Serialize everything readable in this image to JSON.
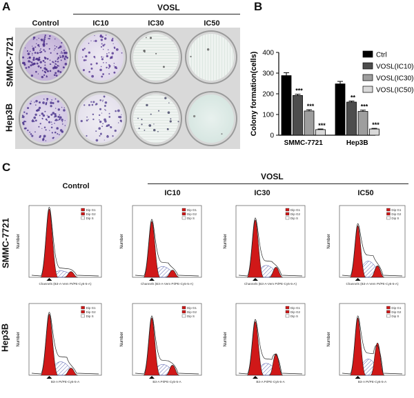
{
  "panel_a": {
    "letter": "A",
    "group_label": "VOSL",
    "col_labels": [
      "Control",
      "IC10",
      "IC30",
      "IC50"
    ],
    "row_labels": [
      "SMMC-7721",
      "Hep3B"
    ]
  },
  "panel_b": {
    "letter": "B"
  },
  "panel_c": {
    "letter": "C",
    "group_label": "VOSL",
    "col_labels": [
      "Control",
      "IC10",
      "IC30",
      "IC50"
    ],
    "row_labels": [
      "SMMC-7721",
      "Hep3B"
    ],
    "legend": [
      "Dip G1",
      "Dip G2",
      "Dip S"
    ],
    "y_axis_label": "Number",
    "x_axis_label_smmc": "Channels (B3-A-Vem PI/PE-Cy5-5-A)",
    "x_axis_label_hep3b": "B3-A PI/PE-Cy5-5-A"
  },
  "chart_data": {
    "type": "bar",
    "title": "",
    "xlabel": "",
    "ylabel": "Colony formation(cells)",
    "ylim": [
      0,
      400
    ],
    "yticks": [
      "0",
      "100",
      "200",
      "300",
      "400"
    ],
    "categories": [
      "SMMC-7721",
      "Hep3B"
    ],
    "series": [
      {
        "name": "Ctrl",
        "color": "#000000",
        "values": [
          288,
          248
        ],
        "errors": [
          14,
          12
        ],
        "sig": [
          "",
          ""
        ]
      },
      {
        "name": "VOSL(IC10)",
        "color": "#4d4d4d",
        "values": [
          192,
          160
        ],
        "errors": [
          6,
          5
        ],
        "sig": [
          "***",
          "**"
        ]
      },
      {
        "name": "VOSL(IC30)",
        "color": "#9e9e9e",
        "values": [
          117,
          115
        ],
        "errors": [
          6,
          6
        ],
        "sig": [
          "***",
          "***"
        ]
      },
      {
        "name": "VOSL(IC50)",
        "color": "#d9d9d9",
        "values": [
          27,
          30
        ],
        "errors": [
          3,
          3
        ],
        "sig": [
          "***",
          "***"
        ]
      }
    ]
  }
}
